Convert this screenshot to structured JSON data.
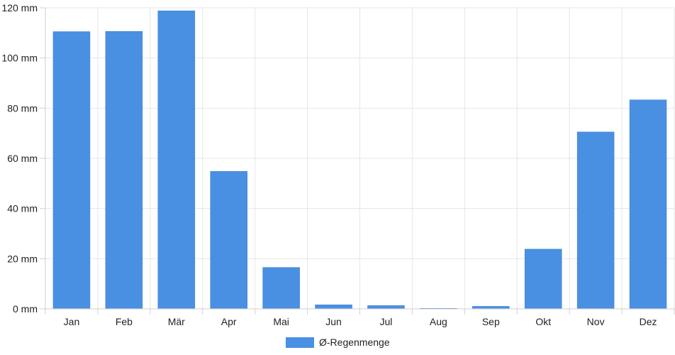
{
  "chart_data": {
    "type": "bar",
    "categories": [
      "Jan",
      "Feb",
      "Mär",
      "Apr",
      "Mai",
      "Jun",
      "Jul",
      "Aug",
      "Sep",
      "Okt",
      "Nov",
      "Dez"
    ],
    "series": [
      {
        "name": "Ø-Regenmenge",
        "values": [
          110.5,
          110.6,
          118.8,
          54.8,
          16.5,
          1.6,
          1.3,
          0.2,
          1.0,
          23.8,
          70.5,
          83.3
        ],
        "color": "#4a90e2"
      }
    ],
    "y_ticks": [
      "0 mm",
      "20 mm",
      "40 mm",
      "60 mm",
      "80 mm",
      "100 mm",
      "120 mm"
    ],
    "ylim": [
      0,
      120
    ],
    "grid": true,
    "legend_position": "bottom"
  }
}
